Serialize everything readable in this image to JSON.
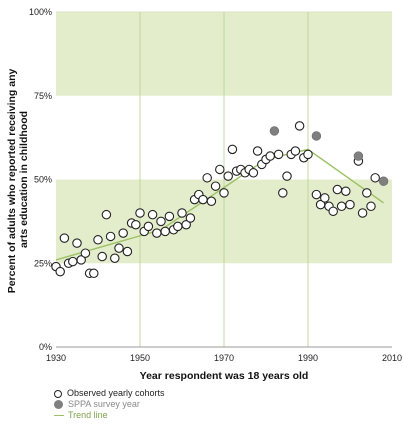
{
  "chart_data": {
    "type": "scatter",
    "xlabel": "Year respondent was 18 years old",
    "ylabel": "Percent of adults who reported receiving any arts education in childhood",
    "ylabel_lines": [
      "Percent of adults who reported receiving any",
      "arts education in childhood"
    ],
    "xlim": [
      1930,
      2010
    ],
    "ylim": [
      0,
      100
    ],
    "x_ticks": [
      1930,
      1950,
      1970,
      1990,
      2010
    ],
    "y_ticks": [
      0,
      25,
      50,
      75,
      100
    ],
    "x_tick_labels": [
      "1930",
      "1950",
      "1970",
      "1990",
      "2010"
    ],
    "y_tick_labels": [
      "0%",
      "25%",
      "50%",
      "75%",
      "100%"
    ],
    "bands": [
      [
        25,
        50
      ],
      [
        75,
        100
      ]
    ],
    "colors": {
      "band": "#e3edcc",
      "trend": "#9dc165",
      "open_edge": "#222222",
      "filled": "#7f7f7f"
    },
    "series": [
      {
        "name": "Observed yearly cohorts",
        "marker": "open-circle",
        "points": [
          [
            1930,
            24
          ],
          [
            1931,
            22.5
          ],
          [
            1932,
            32.5
          ],
          [
            1933,
            25
          ],
          [
            1934,
            25.5
          ],
          [
            1935,
            31
          ],
          [
            1936,
            26
          ],
          [
            1937,
            28
          ],
          [
            1938,
            22
          ],
          [
            1939,
            22
          ],
          [
            1940,
            32
          ],
          [
            1941,
            27
          ],
          [
            1942,
            39.5
          ],
          [
            1943,
            33
          ],
          [
            1944,
            26.5
          ],
          [
            1945,
            29.5
          ],
          [
            1946,
            34
          ],
          [
            1947,
            28.5
          ],
          [
            1948,
            37
          ],
          [
            1949,
            36.5
          ],
          [
            1950,
            40
          ],
          [
            1951,
            34.5
          ],
          [
            1952,
            36
          ],
          [
            1953,
            39.5
          ],
          [
            1954,
            34
          ],
          [
            1955,
            37.5
          ],
          [
            1956,
            34.5
          ],
          [
            1957,
            39
          ],
          [
            1958,
            35
          ],
          [
            1959,
            36
          ],
          [
            1960,
            40
          ],
          [
            1961,
            36.5
          ],
          [
            1962,
            38.5
          ],
          [
            1963,
            44
          ],
          [
            1964,
            45.5
          ],
          [
            1965,
            44
          ],
          [
            1966,
            50.5
          ],
          [
            1967,
            43.5
          ],
          [
            1968,
            48
          ],
          [
            1969,
            53
          ],
          [
            1970,
            46
          ],
          [
            1971,
            51
          ],
          [
            1972,
            59
          ],
          [
            1973,
            52.5
          ],
          [
            1974,
            53
          ],
          [
            1975,
            52
          ],
          [
            1976,
            53
          ],
          [
            1977,
            52
          ],
          [
            1978,
            58.5
          ],
          [
            1979,
            54.5
          ],
          [
            1980,
            56
          ],
          [
            1981,
            57
          ],
          [
            1983,
            57.5
          ],
          [
            1984,
            46
          ],
          [
            1985,
            51
          ],
          [
            1986,
            57.5
          ],
          [
            1987,
            58.5
          ],
          [
            1988,
            66
          ],
          [
            1989,
            56.5
          ],
          [
            1990,
            57.5
          ],
          [
            1992,
            45.5
          ],
          [
            1993,
            42.5
          ],
          [
            1994,
            44.5
          ],
          [
            1995,
            42
          ],
          [
            1996,
            40.5
          ],
          [
            1997,
            47
          ],
          [
            1998,
            42
          ],
          [
            1999,
            46.5
          ],
          [
            2000,
            42.5
          ],
          [
            2002,
            55.5
          ],
          [
            2003,
            40
          ],
          [
            2004,
            46
          ],
          [
            2005,
            42
          ],
          [
            2006,
            50.5
          ]
        ]
      },
      {
        "name": "SPPA survey year",
        "marker": "filled-circle",
        "points": [
          [
            1982,
            64.5
          ],
          [
            1992,
            63
          ],
          [
            2002,
            57
          ],
          [
            2008,
            49.5
          ]
        ]
      }
    ],
    "trend": {
      "name": "Trend line",
      "points": [
        [
          1930,
          26
        ],
        [
          1955,
          35
        ],
        [
          1980,
          56
        ],
        [
          1990,
          59
        ],
        [
          2008,
          43
        ]
      ]
    }
  }
}
